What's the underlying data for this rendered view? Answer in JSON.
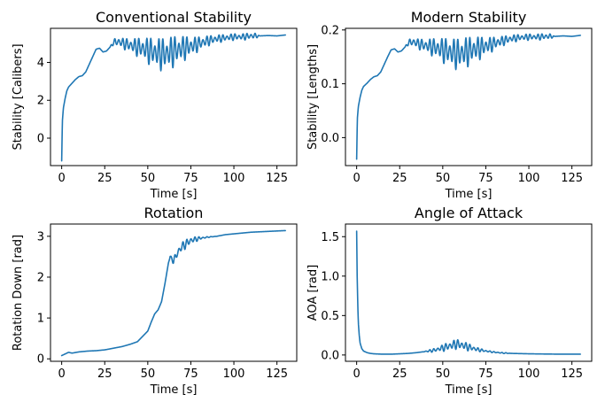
{
  "figure": {
    "background": "#ffffff",
    "line_color": "#1f77b4"
  },
  "chart_data": [
    {
      "id": "conventional",
      "type": "line",
      "title": "Conventional Stability",
      "xlabel": "Time [s]",
      "ylabel": "Stability [Calibers]",
      "xlim": [
        -6.5,
        136.5
      ],
      "ylim": [
        -1.45,
        5.8
      ],
      "xticks": [
        0,
        25,
        50,
        75,
        100,
        125
      ],
      "yticks": [
        0,
        2,
        4
      ],
      "grid": false,
      "legend": "none",
      "osc": {
        "start": 28,
        "end": 115,
        "amp": 0.75,
        "center": 60,
        "width": 18,
        "base_amp": 0.18
      },
      "series": [
        {
          "x": [
            0,
            0.4,
            1,
            2,
            3,
            4,
            6,
            8,
            10,
            12,
            14,
            16,
            18,
            20,
            22,
            24,
            26,
            28,
            30,
            33,
            36,
            40,
            45,
            50,
            55,
            60,
            65,
            70,
            75,
            80,
            85,
            90,
            95,
            100,
            105,
            110,
            115,
            120,
            125,
            130
          ],
          "y": [
            -1.2,
            0.9,
            1.6,
            2.1,
            2.5,
            2.7,
            2.9,
            3.1,
            3.25,
            3.3,
            3.5,
            3.9,
            4.3,
            4.7,
            4.75,
            4.55,
            4.6,
            4.8,
            5.05,
            5.1,
            5.0,
            4.9,
            4.8,
            4.65,
            4.5,
            4.45,
            4.6,
            4.75,
            4.85,
            5.0,
            5.15,
            5.25,
            5.3,
            5.35,
            5.35,
            5.4,
            5.4,
            5.42,
            5.4,
            5.45
          ]
        }
      ]
    },
    {
      "id": "modern",
      "type": "line",
      "title": "Modern Stability",
      "xlabel": "Time [s]",
      "ylabel": "Stability [Lengths]",
      "xlim": [
        -6.5,
        136.5
      ],
      "ylim": [
        -0.052,
        0.203
      ],
      "xticks": [
        0,
        25,
        50,
        75,
        100,
        125
      ],
      "yticks": [
        0.0,
        0.1,
        0.2
      ],
      "tick_format": "fixed1",
      "grid": false,
      "legend": "none",
      "osc": {
        "start": 28,
        "end": 115,
        "amp": 0.025,
        "center": 60,
        "width": 18,
        "base_amp": 0.006
      },
      "series": [
        {
          "x": [
            0,
            0.4,
            1,
            2,
            3,
            4,
            6,
            8,
            10,
            12,
            14,
            16,
            18,
            20,
            22,
            24,
            26,
            28,
            30,
            33,
            36,
            40,
            45,
            50,
            55,
            60,
            65,
            70,
            75,
            80,
            85,
            90,
            95,
            100,
            105,
            110,
            115,
            120,
            125,
            130
          ],
          "y": [
            -0.04,
            0.035,
            0.058,
            0.075,
            0.088,
            0.095,
            0.101,
            0.108,
            0.113,
            0.115,
            0.122,
            0.136,
            0.15,
            0.163,
            0.165,
            0.159,
            0.161,
            0.168,
            0.176,
            0.178,
            0.174,
            0.171,
            0.168,
            0.163,
            0.158,
            0.156,
            0.161,
            0.166,
            0.17,
            0.175,
            0.18,
            0.184,
            0.186,
            0.187,
            0.187,
            0.188,
            0.188,
            0.189,
            0.188,
            0.19
          ]
        }
      ]
    },
    {
      "id": "rotation",
      "type": "line",
      "title": "Rotation",
      "xlabel": "Time [s]",
      "ylabel": "Rotation Down [rad]",
      "xlim": [
        -6.5,
        136.5
      ],
      "ylim": [
        -0.06,
        3.3
      ],
      "xticks": [
        0,
        25,
        50,
        75,
        100,
        125
      ],
      "yticks": [
        0,
        1,
        2,
        3
      ],
      "grid": false,
      "legend": "none",
      "osc": {
        "start": 62,
        "end": 95,
        "amp": 0.12,
        "center": 70,
        "width": 10,
        "base_amp": 0.0
      },
      "series": [
        {
          "x": [
            0,
            2,
            4,
            6,
            10,
            15,
            20,
            25,
            30,
            35,
            40,
            44,
            47,
            50,
            52,
            54,
            56,
            58,
            60,
            62,
            63,
            65,
            68,
            70,
            75,
            80,
            85,
            90,
            95,
            100,
            105,
            110,
            115,
            120,
            125,
            130
          ],
          "y": [
            0.08,
            0.12,
            0.16,
            0.14,
            0.17,
            0.19,
            0.2,
            0.22,
            0.26,
            0.3,
            0.36,
            0.42,
            0.55,
            0.68,
            0.9,
            1.1,
            1.2,
            1.4,
            1.85,
            2.35,
            2.5,
            2.4,
            2.65,
            2.75,
            2.9,
            2.95,
            2.98,
            3.0,
            3.04,
            3.06,
            3.08,
            3.1,
            3.11,
            3.12,
            3.13,
            3.14
          ]
        }
      ]
    },
    {
      "id": "aoa",
      "type": "line",
      "title": "Angle of Attack",
      "xlabel": "Time [s]",
      "ylabel": "AOA [rad]",
      "xlim": [
        -6.5,
        136.5
      ],
      "ylim": [
        -0.08,
        1.66
      ],
      "xticks": [
        0,
        25,
        50,
        75,
        100,
        125
      ],
      "yticks": [
        0.0,
        0.5,
        1.0,
        1.5
      ],
      "tick_format": "fixed1",
      "grid": false,
      "legend": "none",
      "osc": {
        "start": 38,
        "end": 90,
        "amp": 0.06,
        "center": 58,
        "width": 12,
        "base_amp": 0.006
      },
      "series": [
        {
          "x": [
            0,
            0.3,
            0.7,
            1,
            1.5,
            2,
            3,
            4,
            6,
            8,
            10,
            15,
            20,
            25,
            30,
            35,
            40,
            45,
            50,
            55,
            58,
            62,
            65,
            70,
            75,
            80,
            85,
            90,
            100,
            110,
            120,
            130
          ],
          "y": [
            1.57,
            1.0,
            0.6,
            0.4,
            0.25,
            0.15,
            0.08,
            0.05,
            0.03,
            0.02,
            0.015,
            0.01,
            0.01,
            0.015,
            0.02,
            0.03,
            0.045,
            0.06,
            0.09,
            0.12,
            0.14,
            0.12,
            0.1,
            0.07,
            0.05,
            0.035,
            0.025,
            0.02,
            0.015,
            0.012,
            0.01,
            0.01
          ]
        }
      ]
    }
  ]
}
